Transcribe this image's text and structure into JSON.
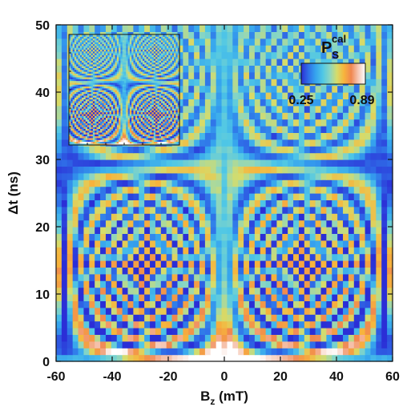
{
  "chart_data": {
    "type": "heatmap",
    "xlabel_main": "B",
    "xlabel_sub": "z",
    "xlabel_unit": " (mT)",
    "ylabel": "Δt (ns)",
    "xlim": [
      -60,
      60
    ],
    "ylim": [
      0,
      50
    ],
    "x_ticks": [
      -60,
      -40,
      -20,
      0,
      20,
      40,
      60
    ],
    "y_ticks": [
      0,
      10,
      20,
      30,
      40,
      50
    ],
    "x_tick_labels": [
      "-60",
      "-40",
      "-20",
      "0",
      "20",
      "40",
      "60"
    ],
    "y_tick_labels": [
      "0",
      "10",
      "20",
      "30",
      "40",
      "50"
    ],
    "grid": false,
    "colorbar": {
      "title_main": "P",
      "title_sub": "S",
      "title_sup": "cal",
      "min": 0.25,
      "max": 0.89,
      "min_label": "0.25",
      "max_label": "0.89",
      "colormap": [
        "#2b2ed6",
        "#2f6fe8",
        "#35a3ee",
        "#4fc7e6",
        "#8ad6c2",
        "#d6dc6a",
        "#f7b43c",
        "#f0874f",
        "#f6c7b4",
        "#ffffff"
      ],
      "placement": "upper-right inside plot"
    },
    "grid_resolution": {
      "x_bins": 61,
      "y_bins": 50
    },
    "features": {
      "description_values": {
        "background_level": 0.48,
        "center_peak_level": 0.89,
        "center_peak_x": 0,
        "center_peak_t": 0,
        "fringe_count_each_side": 9,
        "oscillation_amplitude": 0.3
      }
    },
    "inset": {
      "type": "heatmap",
      "xlim": [
        -60,
        60
      ],
      "ylim": [
        0,
        50
      ],
      "placement": "upper-left inside plot",
      "note_level_shift": 0.0
    }
  }
}
